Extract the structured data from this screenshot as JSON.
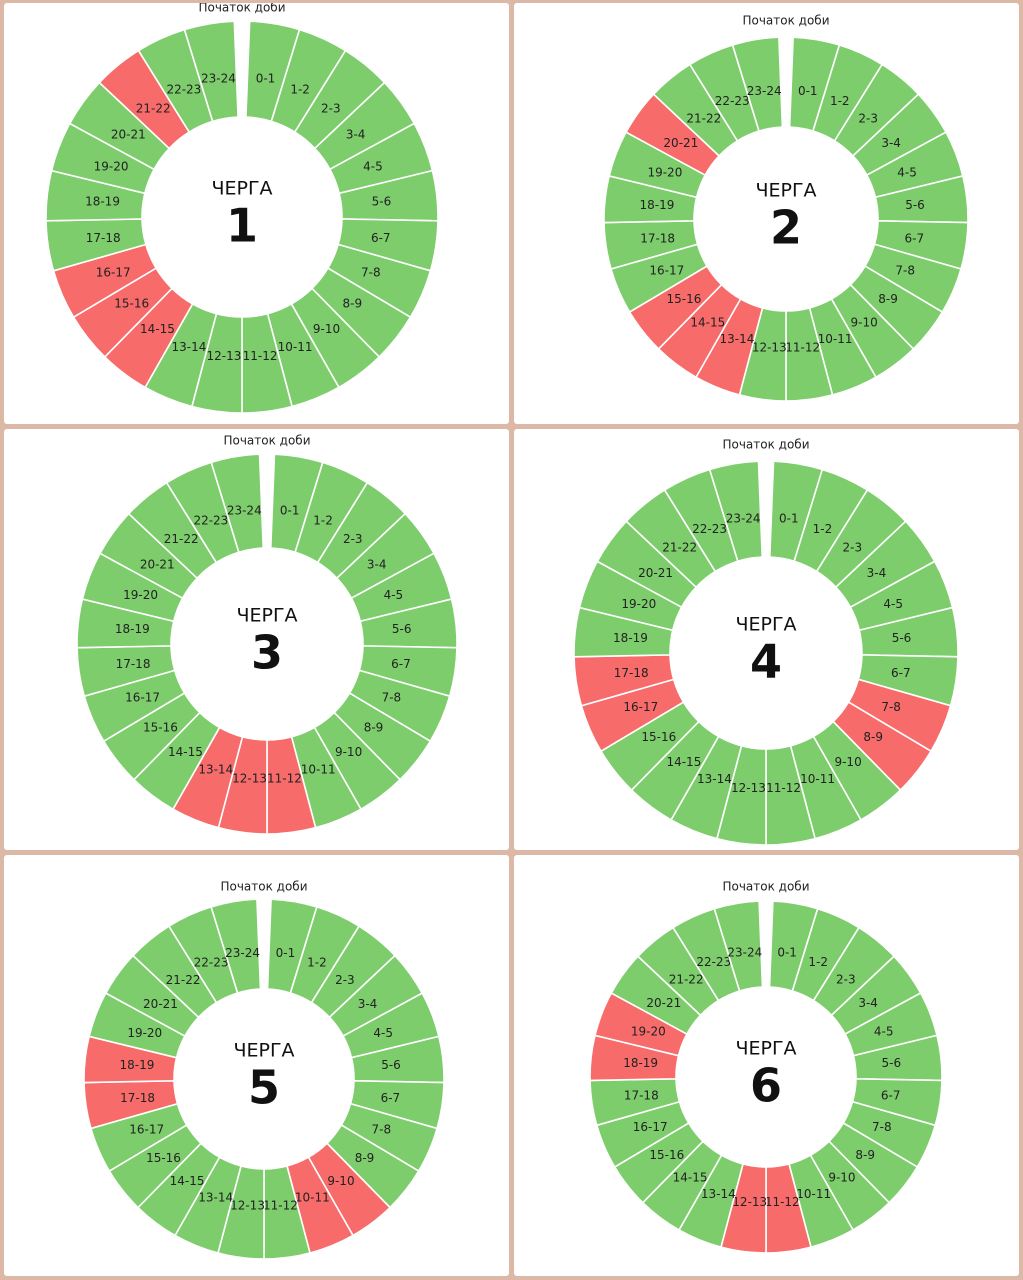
{
  "colors": {
    "on": "#7dcd6c",
    "off": "#f76b6b"
  },
  "hour_labels": [
    "0-1",
    "1-2",
    "2-3",
    "3-4",
    "4-5",
    "5-6",
    "6-7",
    "7-8",
    "8-9",
    "9-10",
    "10-11",
    "11-12",
    "12-13",
    "13-14",
    "14-15",
    "15-16",
    "16-17",
    "17-18",
    "18-19",
    "19-20",
    "20-21",
    "21-22",
    "22-23",
    "23-24"
  ],
  "start_label": "Початок доби",
  "title_word": "ЧЕРГА",
  "queues": [
    {
      "number": "1",
      "off_hours": [
        "14-15",
        "15-16",
        "16-17",
        "21-22"
      ]
    },
    {
      "number": "2",
      "off_hours": [
        "13-14",
        "14-15",
        "15-16",
        "20-21"
      ]
    },
    {
      "number": "3",
      "off_hours": [
        "11-12",
        "12-13",
        "13-14"
      ]
    },
    {
      "number": "4",
      "off_hours": [
        "7-8",
        "8-9",
        "16-17",
        "17-18"
      ]
    },
    {
      "number": "5",
      "off_hours": [
        "9-10",
        "10-11",
        "17-18",
        "18-19"
      ]
    },
    {
      "number": "6",
      "off_hours": [
        "11-12",
        "12-13",
        "18-19",
        "19-20"
      ]
    }
  ]
}
